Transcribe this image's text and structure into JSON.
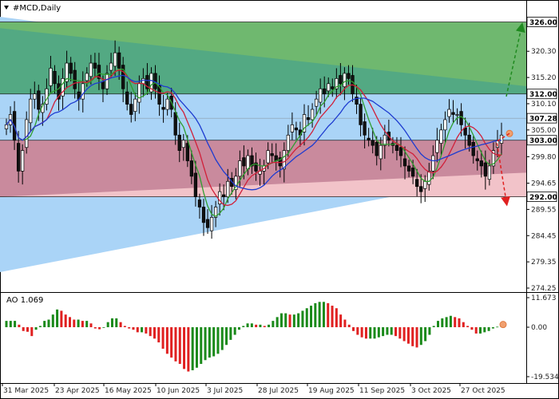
{
  "chart_data": [
    {
      "type": "candlestick",
      "title": "#MCD,Daily",
      "y_ticks": [
        "325.70",
        "320.30",
        "315.20",
        "310.10",
        "305.00",
        "299.80",
        "294.65",
        "289.55",
        "284.45",
        "279.35",
        "274.25"
      ],
      "x_ticks": [
        "31 Mar 2025",
        "23 Apr 2025",
        "16 May 2025",
        "10 Jun 2025",
        "3 Jul 2025",
        "28 Jul 2025",
        "19 Aug 2025",
        "11 Sep 2025",
        "3 Oct 2025",
        "27 Oct 2025"
      ],
      "ylim": [
        274.25,
        327.0
      ],
      "grid": false,
      "price_levels": [
        {
          "label": "326.00",
          "value": 326.0
        },
        {
          "label": "312.00",
          "value": 312.0
        },
        {
          "label": "307.28",
          "value": 307.28
        },
        {
          "label": "303.00",
          "value": 303.0
        },
        {
          "label": "292.00",
          "value": 292.0
        }
      ],
      "zones": [
        {
          "kind": "buy",
          "from": 312.0,
          "to": 326.0,
          "color": "#6fb86f"
        },
        {
          "kind": "sell",
          "from": 292.0,
          "to": 303.0,
          "color": "#c98a9d"
        },
        {
          "kind": "channel",
          "color": "#aad4f7"
        }
      ],
      "forecast": [
        {
          "direction": "up",
          "target": 326.0,
          "color": "#1f8a1f"
        },
        {
          "direction": "down",
          "target": 292.0,
          "color": "#e02020"
        }
      ],
      "moving_averages": [
        {
          "color": "#2f9e2f"
        },
        {
          "color": "#d0203a"
        },
        {
          "color": "#1e3cd0"
        }
      ],
      "close": [
        306,
        308,
        303,
        297,
        301,
        307,
        311,
        312,
        309,
        310,
        313,
        317,
        314,
        311,
        315,
        318,
        316,
        313,
        311,
        314,
        316,
        318,
        317,
        315,
        313,
        316,
        318,
        320,
        317,
        313,
        310,
        308,
        311,
        314,
        315,
        313,
        316,
        313,
        310,
        309,
        311,
        309,
        304,
        301,
        303,
        299,
        296,
        292,
        290,
        287,
        286,
        288,
        290,
        293,
        292,
        295,
        294,
        296,
        299,
        298,
        300,
        298,
        297,
        297,
        298,
        301,
        300,
        299,
        298,
        301,
        304,
        306,
        305,
        304,
        308,
        307,
        309,
        311,
        313,
        312,
        314,
        313,
        315,
        314,
        316,
        315,
        312,
        310,
        306,
        304,
        303,
        302,
        300,
        302,
        304,
        303,
        302,
        301,
        300,
        298,
        297,
        296,
        294,
        293,
        295,
        297,
        300,
        303,
        305,
        307,
        309,
        308,
        308,
        306,
        304,
        302,
        300,
        299,
        298,
        296,
        298,
        301,
        303,
        304
      ]
    },
    {
      "type": "bar",
      "title": "AO 1.069",
      "y_ticks": [
        "11.673",
        "0.00",
        "-19.534"
      ],
      "ylim": [
        -19.534,
        11.673
      ],
      "colors": {
        "up": "#1a8a1a",
        "down": "#e02020"
      },
      "values": [
        2.5,
        2.5,
        2.5,
        1.0,
        -1.5,
        -1.8,
        -3.5,
        -1.0,
        0.5,
        2.5,
        3.0,
        5.0,
        7.0,
        6.5,
        5.0,
        4.0,
        3.0,
        3.0,
        2.5,
        2.5,
        1.5,
        -0.5,
        -0.8,
        0.0,
        2.0,
        3.5,
        3.5,
        2.0,
        0.5,
        -0.5,
        -1.0,
        -2.0,
        -2.0,
        -2.5,
        -3.5,
        -4.5,
        -6.0,
        -8.5,
        -10.5,
        -12.0,
        -13.5,
        -14.5,
        -16.5,
        -17.5,
        -17.0,
        -16.0,
        -14.5,
        -13.0,
        -12.0,
        -11.5,
        -10.5,
        -9.0,
        -7.0,
        -5.0,
        -3.0,
        -1.0,
        0.5,
        1.5,
        1.5,
        1.0,
        1.0,
        0.5,
        1.0,
        2.5,
        4.0,
        5.5,
        5.5,
        5.0,
        5.0,
        5.5,
        6.5,
        7.5,
        8.5,
        9.5,
        10.0,
        10.0,
        9.5,
        8.5,
        7.5,
        5.0,
        3.0,
        1.0,
        -1.5,
        -3.0,
        -4.0,
        -4.5,
        -4.5,
        -4.5,
        -4.0,
        -3.5,
        -3.0,
        -3.0,
        -3.5,
        -4.5,
        -5.5,
        -6.5,
        -7.5,
        -8.0,
        -7.0,
        -5.5,
        -3.0,
        0.5,
        2.5,
        3.5,
        4.0,
        4.5,
        4.0,
        3.5,
        2.0,
        0.5,
        -1.0,
        -2.5,
        -2.5,
        -2.0,
        -1.5,
        -0.5,
        0.2,
        1.069
      ]
    }
  ]
}
